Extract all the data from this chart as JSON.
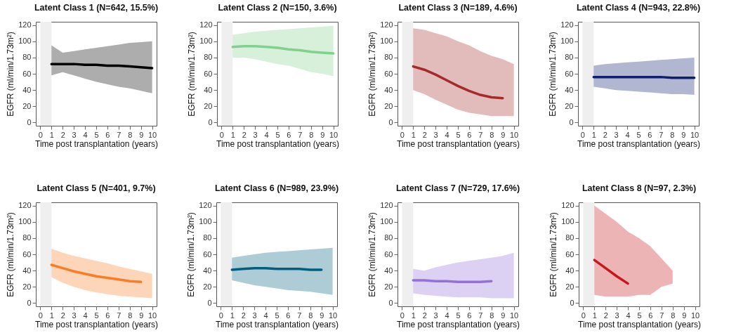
{
  "chart_data": [
    {
      "type": "line",
      "title": "Latent Class 1 (N=642, 15.5%)",
      "xlabel": "Time post transplantation (years)",
      "ylabel": "EGFR (ml/min/1.73m²)",
      "x": [
        1,
        2,
        3,
        4,
        5,
        6,
        7,
        8,
        9,
        10
      ],
      "xlim": [
        -0.4,
        10.4
      ],
      "xticks": [
        0,
        1,
        2,
        3,
        4,
        5,
        6,
        7,
        8,
        9,
        10
      ],
      "ylim": [
        -4,
        124
      ],
      "yticks": [
        0,
        20,
        40,
        60,
        80,
        100,
        120
      ],
      "grid": false,
      "bands": [
        {
          "axis": "x",
          "from": 0,
          "to": 1,
          "color": "#efefef"
        }
      ],
      "series": [
        {
          "color": "#000000",
          "values": [
            72,
            72,
            72,
            71,
            71,
            70,
            70,
            69,
            68,
            67
          ],
          "lower": [
            58,
            62,
            58,
            54,
            50,
            47,
            44,
            42,
            39,
            36
          ],
          "upper": [
            95,
            86,
            88,
            90,
            92,
            94,
            96,
            98,
            99,
            100
          ]
        }
      ]
    },
    {
      "type": "line",
      "title": "Latent Class 2 (N=150, 3.6%)",
      "xlabel": "Time post transplantation (years)",
      "ylabel": "EGFR (ml/min/1.73m²)",
      "x": [
        1,
        2,
        3,
        4,
        5,
        6,
        7,
        8,
        9,
        10
      ],
      "xlim": [
        -0.4,
        10.4
      ],
      "xticks": [
        0,
        1,
        2,
        3,
        4,
        5,
        6,
        7,
        8,
        9,
        10
      ],
      "ylim": [
        -4,
        124
      ],
      "yticks": [
        0,
        20,
        40,
        60,
        80,
        100,
        120
      ],
      "grid": false,
      "bands": [
        {
          "axis": "x",
          "from": 0,
          "to": 1,
          "color": "#efefef"
        }
      ],
      "series": [
        {
          "color": "#7fd18b",
          "values": [
            93,
            94,
            94,
            93,
            92,
            90,
            89,
            87,
            86,
            85
          ],
          "lower": [
            80,
            80,
            78,
            75,
            72,
            70,
            66,
            62,
            60,
            57
          ],
          "upper": [
            108,
            110,
            112,
            113,
            114,
            115,
            116,
            117,
            118,
            119
          ]
        }
      ]
    },
    {
      "type": "line",
      "title": "Latent Class 3 (N=189, 4.6%)",
      "xlabel": "Time post transplantation (years)",
      "ylabel": "EGFR (ml/min/1.73m²)",
      "x": [
        1,
        2,
        3,
        4,
        5,
        6,
        7,
        8,
        9,
        10
      ],
      "xlim": [
        -0.4,
        10.4
      ],
      "xticks": [
        0,
        1,
        2,
        3,
        4,
        5,
        6,
        7,
        8,
        9,
        10
      ],
      "ylim": [
        -4,
        124
      ],
      "yticks": [
        0,
        20,
        40,
        60,
        80,
        100,
        120
      ],
      "grid": false,
      "bands": [
        {
          "axis": "x",
          "from": 0,
          "to": 1,
          "color": "#efefef"
        }
      ],
      "series": [
        {
          "color": "#a52a2a",
          "values": [
            69,
            65,
            59,
            52,
            45,
            39,
            34,
            31,
            30,
            null
          ],
          "lower": [
            40,
            35,
            28,
            22,
            16,
            12,
            10,
            8,
            8,
            8
          ],
          "upper": [
            116,
            114,
            110,
            106,
            100,
            95,
            88,
            82,
            78,
            72
          ]
        }
      ]
    },
    {
      "type": "line",
      "title": "Latent Class 4 (N=943, 22.8%)",
      "xlabel": "Time post transplantation (years)",
      "ylabel": "EGFR (ml/min/1.73m²)",
      "x": [
        1,
        2,
        3,
        4,
        5,
        6,
        7,
        8,
        9,
        10
      ],
      "xlim": [
        -0.4,
        10.4
      ],
      "xticks": [
        0,
        1,
        2,
        3,
        4,
        5,
        6,
        7,
        8,
        9,
        10
      ],
      "ylim": [
        -4,
        124
      ],
      "yticks": [
        0,
        20,
        40,
        60,
        80,
        100,
        120
      ],
      "grid": false,
      "bands": [
        {
          "axis": "x",
          "from": 0,
          "to": 1,
          "color": "#efefef"
        }
      ],
      "series": [
        {
          "color": "#0d1f6e",
          "values": [
            56,
            56,
            56,
            56,
            56,
            56,
            56,
            55,
            55,
            55
          ],
          "lower": [
            44,
            42,
            40,
            39,
            38,
            37,
            36,
            35,
            35,
            34
          ],
          "upper": [
            70,
            72,
            73,
            74,
            75,
            76,
            77,
            78,
            79,
            80
          ]
        }
      ]
    },
    {
      "type": "line",
      "title": "Latent Class 5 (N=401, 9.7%)",
      "xlabel": "Time post transplantation (years)",
      "ylabel": "EGFR (ml/min/1.73m²)",
      "x": [
        1,
        2,
        3,
        4,
        5,
        6,
        7,
        8,
        9,
        10
      ],
      "xlim": [
        -0.4,
        10.4
      ],
      "xticks": [
        0,
        1,
        2,
        3,
        4,
        5,
        6,
        7,
        8,
        9,
        10
      ],
      "ylim": [
        -4,
        124
      ],
      "yticks": [
        0,
        20,
        40,
        60,
        80,
        100,
        120
      ],
      "grid": false,
      "bands": [
        {
          "axis": "x",
          "from": 0,
          "to": 1,
          "color": "#efefef"
        }
      ],
      "series": [
        {
          "color": "#f97d26",
          "values": [
            47,
            43,
            39,
            36,
            33,
            31,
            29,
            27,
            26,
            null
          ],
          "lower": [
            32,
            25,
            20,
            16,
            13,
            11,
            9,
            8,
            7,
            6
          ],
          "upper": [
            67,
            62,
            58,
            55,
            52,
            49,
            45,
            42,
            39,
            36
          ]
        }
      ]
    },
    {
      "type": "line",
      "title": "Latent Class 6 (N=989, 23.9%)",
      "xlabel": "Time post transplantation (years)",
      "ylabel": "EGFR (ml/min/1.73m²)",
      "x": [
        1,
        2,
        3,
        4,
        5,
        6,
        7,
        8,
        9,
        10
      ],
      "xlim": [
        -0.4,
        10.4
      ],
      "xticks": [
        0,
        1,
        2,
        3,
        4,
        5,
        6,
        7,
        8,
        9,
        10
      ],
      "ylim": [
        -4,
        124
      ],
      "yticks": [
        0,
        20,
        40,
        60,
        80,
        100,
        120
      ],
      "grid": false,
      "bands": [
        {
          "axis": "x",
          "from": 0,
          "to": 1,
          "color": "#efefef"
        }
      ],
      "series": [
        {
          "color": "#005f80",
          "values": [
            41,
            42,
            43,
            43,
            42,
            42,
            42,
            41,
            41,
            null
          ],
          "lower": [
            28,
            25,
            22,
            20,
            18,
            16,
            15,
            14,
            12,
            10
          ],
          "upper": [
            56,
            58,
            60,
            62,
            63,
            64,
            65,
            66,
            67,
            68
          ]
        }
      ]
    },
    {
      "type": "line",
      "title": "Latent Class 7 (N=729, 17.6%)",
      "xlabel": "Time post transplantation (years)",
      "ylabel": "EGFR (ml/min/1.73m²)",
      "x": [
        1,
        2,
        3,
        4,
        5,
        6,
        7,
        8,
        9,
        10
      ],
      "xlim": [
        -0.4,
        10.4
      ],
      "xticks": [
        0,
        1,
        2,
        3,
        4,
        5,
        6,
        7,
        8,
        9,
        10
      ],
      "ylim": [
        -4,
        124
      ],
      "yticks": [
        0,
        20,
        40,
        60,
        80,
        100,
        120
      ],
      "grid": false,
      "bands": [
        {
          "axis": "x",
          "from": 0,
          "to": 1,
          "color": "#efefef"
        }
      ],
      "series": [
        {
          "color": "#9370db",
          "values": [
            28,
            28,
            27,
            27,
            26,
            26,
            26,
            27,
            null,
            null
          ],
          "lower": [
            12,
            10,
            9,
            8,
            7,
            7,
            7,
            6,
            6,
            6
          ],
          "upper": [
            42,
            40,
            44,
            47,
            50,
            52,
            54,
            56,
            58,
            62
          ]
        }
      ]
    },
    {
      "type": "line",
      "title": "Latent Class 8 (N=97, 2.3%)",
      "xlabel": "Time post transplantation (years)",
      "ylabel": "EGFR (ml/min/1.73m²)",
      "x": [
        1,
        2,
        3,
        4,
        5,
        6,
        7,
        8
      ],
      "xlim": [
        -0.4,
        10.4
      ],
      "xticks": [
        0,
        1,
        2,
        3,
        4,
        5,
        6,
        7,
        8,
        9,
        10
      ],
      "ylim": [
        -4,
        124
      ],
      "yticks": [
        0,
        20,
        40,
        60,
        80,
        100,
        120
      ],
      "grid": false,
      "bands": [
        {
          "axis": "x",
          "from": 0,
          "to": 1,
          "color": "#efefef"
        }
      ],
      "series": [
        {
          "color": "#c8161d",
          "values": [
            53,
            43,
            33,
            24,
            null,
            null,
            null,
            null
          ],
          "lower": [
            10,
            8,
            8,
            8,
            10,
            10,
            20,
            24
          ],
          "upper": [
            120,
            110,
            100,
            88,
            80,
            70,
            55,
            40
          ]
        }
      ]
    }
  ]
}
